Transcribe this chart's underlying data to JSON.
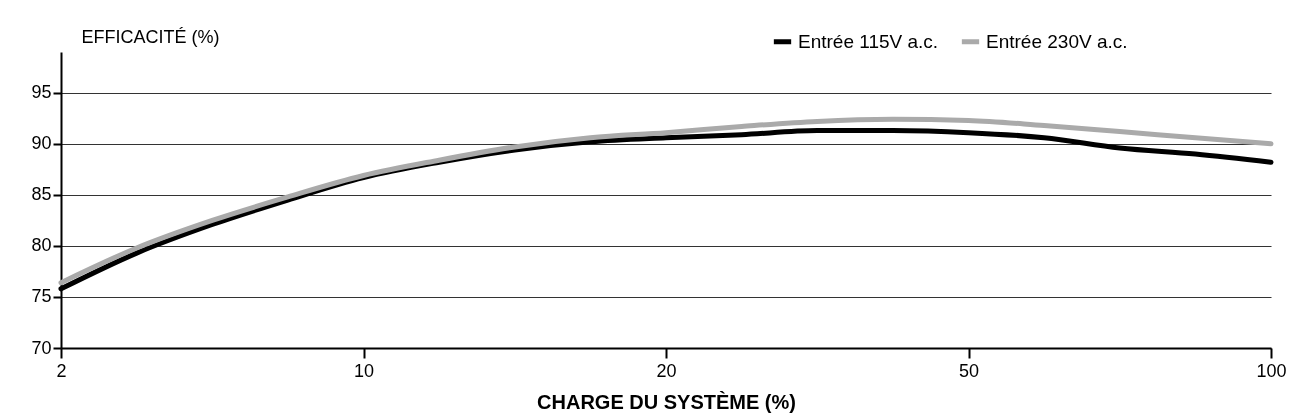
{
  "chart_data": {
    "type": "line",
    "xlabel": "CHARGE DU SYSTÈME (%)",
    "ylabel": "EFFICACITÉ (%)",
    "categories": [
      "2",
      null,
      null,
      null,
      "10",
      null,
      null,
      null,
      "20",
      null,
      null,
      null,
      "50",
      null,
      null,
      null,
      "100"
    ],
    "series": [
      {
        "name": "Entrée 115V a.c.",
        "color": "#000000",
        "values": [
          75.8,
          79.3,
          82.1,
          84.5,
          86.7,
          88.2,
          89.4,
          90.2,
          90.6,
          90.9,
          91.3,
          91.3,
          91.1,
          90.6,
          89.6,
          89.0,
          88.2
        ]
      },
      {
        "name": "Entrée 230V a.c.",
        "color": "#aaaaaa",
        "values": [
          76.4,
          79.8,
          82.5,
          84.8,
          86.9,
          88.4,
          89.7,
          90.6,
          91.1,
          91.7,
          92.2,
          92.4,
          92.3,
          91.8,
          91.2,
          90.6,
          90.0
        ]
      }
    ],
    "ylim": [
      70,
      99
    ],
    "yticks": [
      70,
      75,
      80,
      85,
      90,
      95
    ],
    "grid": "y",
    "legend": "top right",
    "marker": "none",
    "line_style": "solid"
  }
}
